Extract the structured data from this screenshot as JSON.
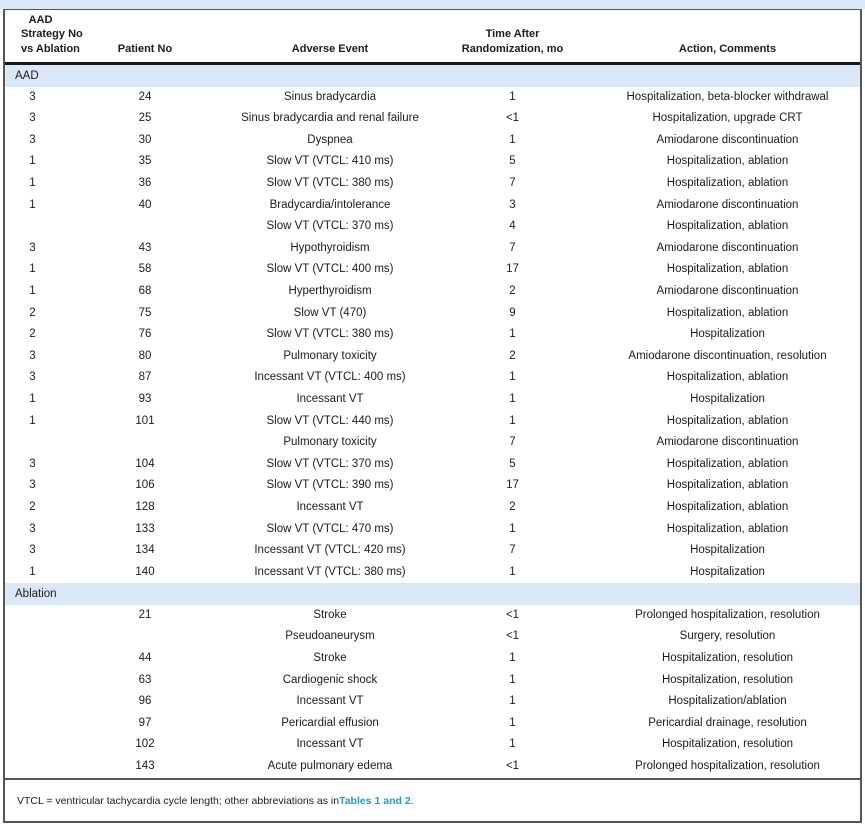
{
  "figure": {
    "columns": [
      {
        "lines": [
          "AAD",
          "Strategy No",
          "vs Ablation"
        ]
      },
      {
        "lines": [
          "Patient No"
        ]
      },
      {
        "lines": [
          "Adverse Event"
        ]
      },
      {
        "lines": [
          "Time After",
          "Randomization, mo"
        ]
      },
      {
        "lines": [
          "Action, Comments"
        ]
      }
    ],
    "sections": [
      {
        "label": "AAD",
        "rows": [
          [
            "3",
            "24",
            "Sinus bradycardia",
            "1",
            "Hospitalization, beta-blocker withdrawal"
          ],
          [
            "3",
            "25",
            "Sinus bradycardia and renal failure",
            "<1",
            "Hospitalization, upgrade CRT"
          ],
          [
            "3",
            "30",
            "Dyspnea",
            "1",
            "Amiodarone discontinuation"
          ],
          [
            "1",
            "35",
            "Slow VT (VTCL: 410 ms)",
            "5",
            "Hospitalization, ablation"
          ],
          [
            "1",
            "36",
            "Slow VT (VTCL: 380 ms)",
            "7",
            "Hospitalization, ablation"
          ],
          [
            "1",
            "40",
            "Bradycardia/intolerance",
            "3",
            "Amiodarone discontinuation"
          ],
          [
            "",
            "",
            "Slow VT (VTCL: 370 ms)",
            "4",
            "Hospitalization, ablation"
          ],
          [
            "3",
            "43",
            "Hypothyroidism",
            "7",
            "Amiodarone discontinuation"
          ],
          [
            "1",
            "58",
            "Slow VT (VTCL: 400 ms)",
            "17",
            "Hospitalization, ablation"
          ],
          [
            "1",
            "68",
            "Hyperthyroidism",
            "2",
            "Amiodarone discontinuation"
          ],
          [
            "2",
            "75",
            "Slow VT (470)",
            "9",
            "Hospitalization, ablation"
          ],
          [
            "2",
            "76",
            "Slow VT (VTCL: 380 ms)",
            "1",
            "Hospitalization"
          ],
          [
            "3",
            "80",
            "Pulmonary toxicity",
            "2",
            "Amiodarone discontinuation, resolution"
          ],
          [
            "3",
            "87",
            "Incessant VT (VTCL: 400 ms)",
            "1",
            "Hospitalization, ablation"
          ],
          [
            "1",
            "93",
            "Incessant VT",
            "1",
            "Hospitalization"
          ],
          [
            "1",
            "101",
            "Slow VT (VTCL: 440 ms)",
            "1",
            "Hospitalization, ablation"
          ],
          [
            "",
            "",
            "Pulmonary toxicity",
            "7",
            "Amiodarone discontinuation"
          ],
          [
            "3",
            "104",
            "Slow VT (VTCL: 370 ms)",
            "5",
            "Hospitalization, ablation"
          ],
          [
            "3",
            "106",
            "Slow VT (VTCL: 390 ms)",
            "17",
            "Hospitalization, ablation"
          ],
          [
            "2",
            "128",
            "Incessant VT",
            "2",
            "Hospitalization, ablation"
          ],
          [
            "3",
            "133",
            "Slow VT (VTCL: 470 ms)",
            "1",
            "Hospitalization, ablation"
          ],
          [
            "3",
            "134",
            "Incessant VT (VTCL: 420 ms)",
            "7",
            "Hospitalization"
          ],
          [
            "1",
            "140",
            "Incessant VT (VTCL: 380 ms)",
            "1",
            "Hospitalization"
          ]
        ]
      },
      {
        "label": "Ablation",
        "rows": [
          [
            "",
            "21",
            "Stroke",
            "<1",
            "Prolonged hospitalization, resolution"
          ],
          [
            "",
            "",
            "Pseudoaneurysm",
            "<1",
            "Surgery, resolution"
          ],
          [
            "",
            "44",
            "Stroke",
            "1",
            "Hospitalization, resolution"
          ],
          [
            "",
            "63",
            "Cardiogenic shock",
            "1",
            "Hospitalization, resolution"
          ],
          [
            "",
            "96",
            "Incessant VT",
            "1",
            "Hospitalization/ablation"
          ],
          [
            "",
            "97",
            "Pericardial effusion",
            "1",
            "Pericardial drainage, resolution"
          ],
          [
            "",
            "102",
            "Incessant VT",
            "1",
            "Hospitalization, resolution"
          ],
          [
            "",
            "143",
            "Acute pulmonary edema",
            "<1",
            "Prolonged hospitalization, resolution"
          ]
        ]
      }
    ],
    "footnote": {
      "text_before_link": "VTCL = ventricular tachycardia cycle length; other abbreviations as in ",
      "link_text": "Tables 1 and 2",
      "text_after_link": "."
    },
    "colors": {
      "accent_band": "#dbe8f7",
      "section_band": "#dbe8f7",
      "link": "#2798cd",
      "border_dark": "#54565b",
      "header_rule": "#17171b"
    }
  }
}
